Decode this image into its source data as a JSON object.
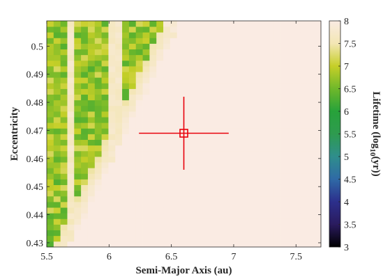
{
  "chart_data": {
    "type": "heatmap",
    "title": "",
    "xlabel": "Semi-Major Axis (au)",
    "ylabel": "Eccentricity",
    "colorbar_label_parts": [
      "Lifetime (log",
      "10",
      "(yr))"
    ],
    "xlim": [
      5.5,
      7.7
    ],
    "ylim": [
      0.4285,
      0.509
    ],
    "x_ticks": [
      5.5,
      6,
      6.5,
      7,
      7.5
    ],
    "x_tick_labels": [
      "5.5",
      "6",
      "6.5",
      "7",
      "7.5"
    ],
    "y_ticks": [
      0.43,
      0.44,
      0.45,
      0.46,
      0.47,
      0.48,
      0.49,
      0.5
    ],
    "y_tick_labels": [
      "0.43",
      "0.44",
      "0.45",
      "0.46",
      "0.47",
      "0.48",
      "0.49",
      "0.5"
    ],
    "colorbar_range": [
      3,
      8
    ],
    "colorbar_ticks": [
      3,
      3.5,
      4,
      4.5,
      5,
      5.5,
      6,
      6.5,
      7,
      7.5,
      8
    ],
    "colorbar_tick_labels": [
      "3",
      "3.5",
      "4",
      "4.5",
      "5",
      "5.5",
      "6",
      "6.5",
      "7",
      "7.5",
      "8"
    ],
    "colormap_hex": [
      "#000000",
      "#2a1b5e",
      "#2c2f8c",
      "#2f6aa6",
      "#2f8e8c",
      "#2e9b4f",
      "#27a23a",
      "#6fb82a",
      "#c6cf28",
      "#f3e6b4",
      "#faebe3"
    ],
    "grid": false,
    "grid_size": {
      "n_a": 40,
      "n_e": 40
    },
    "region_notes": {
      "stable_lifetime": 8,
      "unstable_strips_a_ranges": [
        [
          5.5,
          5.64
        ],
        [
          5.72,
          5.98
        ],
        [
          6.1,
          6.42
        ]
      ],
      "unstable_lifetime_range": [
        6.3,
        7.2
      ]
    },
    "marker": {
      "a": 6.6,
      "e": 0.469,
      "a_err": [
        6.24,
        6.96
      ],
      "e_err": [
        0.456,
        0.482
      ],
      "color": "#e8000b"
    }
  }
}
